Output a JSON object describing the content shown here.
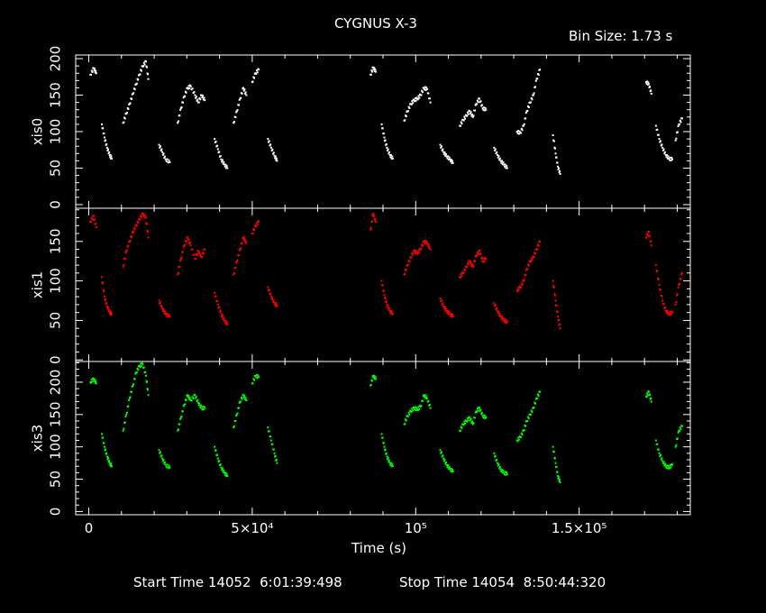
{
  "header": {
    "title": "CYGNUS X-3",
    "bin_size": "Bin Size: 1.73 s"
  },
  "footer": {
    "start_label": "Start Time 14052  6:01:39:498",
    "stop_label": "Stop Time 14054  8:50:44:320"
  },
  "colors": {
    "background": "#000000",
    "axes": "#ffffff",
    "xis0": "#ffffff",
    "xis1": "#ff0000",
    "xis3": "#00ff00"
  },
  "chart_data": {
    "type": "scatter",
    "title": "CYGNUS X-3",
    "subtitle": "Bin Size: 1.73 s",
    "xlabel": "Time (s)",
    "xlim": [
      -4000,
      184000
    ],
    "x_ticks": [
      {
        "value": 0,
        "label": "0"
      },
      {
        "value": 50000,
        "label": "5×10⁴"
      },
      {
        "value": 100000,
        "label": "10⁵"
      },
      {
        "value": 150000,
        "label": "1.5×10⁵"
      }
    ],
    "panels": [
      {
        "name": "xis0",
        "ylabel": "xis0",
        "color": "#ffffff",
        "ylim": [
          -5,
          205
        ],
        "yticks": [
          0,
          50,
          100,
          150,
          200
        ],
        "segments": [
          {
            "x": [
              500,
              1500,
              2300
            ],
            "y": [
              178,
              187,
              180
            ]
          },
          {
            "x": [
              4000,
              4800,
              5600,
              6400,
              7000
            ],
            "y": [
              110,
              92,
              78,
              68,
              63
            ]
          },
          {
            "x": [
              10500,
              11500,
              12500,
              13500,
              14500,
              15500,
              16500,
              17500,
              18200
            ],
            "y": [
              112,
              125,
              138,
              152,
              165,
              178,
              190,
              196,
              172
            ]
          },
          {
            "x": [
              21500,
              22500,
              23500,
              24800
            ],
            "y": [
              82,
              72,
              62,
              58
            ]
          },
          {
            "x": [
              27200,
              28200,
              29200,
              30200,
              31200,
              32500,
              33500,
              34500,
              35500
            ],
            "y": [
              112,
              132,
              148,
              160,
              162,
              150,
              140,
              150,
              143
            ]
          },
          {
            "x": [
              38500,
              39500,
              40500,
              41500,
              42400
            ],
            "y": [
              90,
              76,
              62,
              55,
              50
            ]
          },
          {
            "x": [
              44300,
              45300,
              46300,
              47300,
              48200
            ],
            "y": [
              112,
              128,
              145,
              160,
              150
            ]
          },
          {
            "x": [
              50000,
              51000,
              52000
            ],
            "y": [
              168,
              180,
              185
            ]
          },
          {
            "x": [
              54800,
              55800,
              56800,
              57600
            ],
            "y": [
              90,
              78,
              67,
              60
            ]
          },
          {
            "x": [
              86200,
              87000,
              87800
            ],
            "y": [
              178,
              188,
              182
            ]
          },
          {
            "x": [
              89600,
              90400,
              91200,
              92100,
              93000
            ],
            "y": [
              110,
              92,
              78,
              68,
              63
            ]
          },
          {
            "x": [
              96500,
              97500,
              98500,
              99500,
              100500,
              101500,
              102500,
              103500,
              104500
            ],
            "y": [
              115,
              128,
              138,
              143,
              145,
              150,
              160,
              158,
              140
            ]
          },
          {
            "x": [
              107500,
              108500,
              109500,
              110500,
              111400
            ],
            "y": [
              82,
              72,
              66,
              62,
              57
            ]
          },
          {
            "x": [
              113500,
              114500,
              115500,
              116500,
              117500,
              118500,
              119500,
              120500,
              121500
            ],
            "y": [
              108,
              116,
              122,
              128,
              120,
              138,
              145,
              132,
              130
            ]
          },
          {
            "x": [
              124000,
              125000,
              126000,
              127000,
              128000
            ],
            "y": [
              78,
              68,
              60,
              55,
              50
            ]
          },
          {
            "x": [
              131000,
              132000,
              133000,
              134000,
              135000,
              136000,
              137000,
              138000
            ],
            "y": [
              100,
              98,
              108,
              128,
              140,
              150,
              172,
              185
            ]
          },
          {
            "x": [
              142000,
              142800,
              143500,
              144200
            ],
            "y": [
              95,
              70,
              52,
              42
            ]
          },
          {
            "x": [
              170500,
              171300,
              172100
            ],
            "y": [
              168,
              165,
              152
            ]
          },
          {
            "x": [
              173500,
              174500,
              175500,
              176500,
              177500,
              178500
            ],
            "y": [
              108,
              90,
              78,
              68,
              63,
              62
            ]
          },
          {
            "x": [
              179500,
              180500,
              181500
            ],
            "y": [
              88,
              110,
              118
            ]
          }
        ]
      },
      {
        "name": "xis1",
        "ylabel": "xis1",
        "color": "#ff0000",
        "ylim": [
          -2,
          192
        ],
        "yticks": [
          0,
          50,
          100,
          150
        ],
        "segments": [
          {
            "x": [
              500,
              1500,
              2300
            ],
            "y": [
              175,
              182,
              168
            ]
          },
          {
            "x": [
              4000,
              4800,
              5600,
              6400,
              7000
            ],
            "y": [
              105,
              80,
              68,
              60,
              58
            ]
          },
          {
            "x": [
              10500,
              11500,
              12500,
              13500,
              14500,
              15500,
              16500,
              17500,
              18200
            ],
            "y": [
              118,
              138,
              150,
              162,
              170,
              178,
              185,
              180,
              155
            ]
          },
          {
            "x": [
              21500,
              22500,
              23500,
              24800
            ],
            "y": [
              75,
              65,
              58,
              55
            ]
          },
          {
            "x": [
              27200,
              28200,
              29200,
              30200,
              31200,
              32500,
              33500,
              34500,
              35500
            ],
            "y": [
              108,
              128,
              145,
              155,
              145,
              128,
              138,
              130,
              140
            ]
          },
          {
            "x": [
              38500,
              39500,
              40500,
              41500,
              42400
            ],
            "y": [
              85,
              70,
              58,
              50,
              45
            ]
          },
          {
            "x": [
              44300,
              45300,
              46300,
              47300,
              48200
            ],
            "y": [
              108,
              125,
              140,
              155,
              148
            ]
          },
          {
            "x": [
              50000,
              51000,
              52000
            ],
            "y": [
              160,
              170,
              175
            ]
          },
          {
            "x": [
              54800,
              55800,
              56800,
              57600
            ],
            "y": [
              92,
              80,
              72,
              68
            ]
          },
          {
            "x": [
              86200,
              87000,
              87800
            ],
            "y": [
              165,
              185,
              175
            ]
          },
          {
            "x": [
              89600,
              90400,
              91200,
              92100,
              93000
            ],
            "y": [
              100,
              82,
              70,
              62,
              58
            ]
          },
          {
            "x": [
              96500,
              97500,
              98500,
              99500,
              100500,
              101500,
              102500,
              103500,
              104500
            ],
            "y": [
              108,
              120,
              130,
              138,
              135,
              140,
              150,
              148,
              140
            ]
          },
          {
            "x": [
              107500,
              108500,
              109500,
              110500,
              111400
            ],
            "y": [
              78,
              68,
              62,
              58,
              55
            ]
          },
          {
            "x": [
              113500,
              114500,
              115500,
              116500,
              117500,
              118500,
              119500,
              120500,
              121500
            ],
            "y": [
              105,
              110,
              118,
              125,
              118,
              132,
              138,
              125,
              128
            ]
          },
          {
            "x": [
              124000,
              125000,
              126000,
              127000,
              128000
            ],
            "y": [
              72,
              62,
              55,
              50,
              48
            ]
          },
          {
            "x": [
              131000,
              132000,
              133000,
              134000,
              135000,
              136000,
              137000,
              138000
            ],
            "y": [
              88,
              92,
              100,
              115,
              125,
              130,
              140,
              150
            ]
          },
          {
            "x": [
              142000,
              142800,
              143500,
              144200
            ],
            "y": [
              100,
              75,
              55,
              40
            ]
          },
          {
            "x": [
              170500,
              171300,
              172100
            ],
            "y": [
              155,
              162,
              145
            ]
          },
          {
            "x": [
              173500,
              174500,
              175500,
              176500,
              177500,
              178500
            ],
            "y": [
              120,
              95,
              75,
              62,
              58,
              60
            ]
          },
          {
            "x": [
              179500,
              180500,
              181500
            ],
            "y": [
              70,
              95,
              110
            ]
          }
        ]
      },
      {
        "name": "xis3",
        "ylabel": "xis3",
        "color": "#00ff00",
        "ylim": [
          -5,
          232
        ],
        "yticks": [
          0,
          50,
          100,
          150,
          200
        ],
        "segments": [
          {
            "x": [
              500,
              1500,
              2300
            ],
            "y": [
              200,
              205,
              198
            ]
          },
          {
            "x": [
              4000,
              4800,
              5600,
              6400,
              7000
            ],
            "y": [
              120,
              100,
              85,
              75,
              70
            ]
          },
          {
            "x": [
              10500,
              11500,
              12500,
              13500,
              14500,
              15500,
              16500,
              17500,
              18200
            ],
            "y": [
              125,
              150,
              175,
              195,
              215,
              225,
              228,
              210,
              180
            ]
          },
          {
            "x": [
              21500,
              22500,
              23500,
              24800
            ],
            "y": [
              95,
              82,
              72,
              68
            ]
          },
          {
            "x": [
              27200,
              28200,
              29200,
              30200,
              31200,
              32500,
              33500,
              34500,
              35500
            ],
            "y": [
              125,
              145,
              165,
              180,
              172,
              180,
              168,
              160,
              160
            ]
          },
          {
            "x": [
              38500,
              39500,
              40500,
              41500,
              42400
            ],
            "y": [
              100,
              82,
              68,
              60,
              55
            ]
          },
          {
            "x": [
              44300,
              45300,
              46300,
              47300,
              48200
            ],
            "y": [
              130,
              150,
              170,
              180,
              172
            ]
          },
          {
            "x": [
              50000,
              51000,
              52000
            ],
            "y": [
              198,
              210,
              208
            ]
          },
          {
            "x": [
              54800,
              55800,
              56800,
              57600
            ],
            "y": [
              130,
              110,
              90,
              75
            ]
          },
          {
            "x": [
              86200,
              87000,
              87800
            ],
            "y": [
              195,
              210,
              205
            ]
          },
          {
            "x": [
              89600,
              90400,
              91200,
              92100,
              93000
            ],
            "y": [
              120,
              100,
              85,
              75,
              70
            ]
          },
          {
            "x": [
              96500,
              97500,
              98500,
              99500,
              100500,
              101500,
              102500,
              103500,
              104500
            ],
            "y": [
              135,
              148,
              155,
              160,
              158,
              162,
              180,
              175,
              160
            ]
          },
          {
            "x": [
              107500,
              108500,
              109500,
              110500,
              111400
            ],
            "y": [
              95,
              82,
              72,
              66,
              62
            ]
          },
          {
            "x": [
              113500,
              114500,
              115500,
              116500,
              117500,
              118500,
              119500,
              120500,
              121500
            ],
            "y": [
              125,
              135,
              140,
              145,
              135,
              155,
              160,
              148,
              145
            ]
          },
          {
            "x": [
              124000,
              125000,
              126000,
              127000,
              128000
            ],
            "y": [
              90,
              75,
              65,
              60,
              58
            ]
          },
          {
            "x": [
              131000,
              132000,
              133000,
              134000,
              135000,
              136000,
              137000,
              138000
            ],
            "y": [
              110,
              115,
              125,
              140,
              150,
              160,
              175,
              185
            ]
          },
          {
            "x": [
              142000,
              142800,
              143500,
              144200
            ],
            "y": [
              100,
              75,
              55,
              45
            ]
          },
          {
            "x": [
              170500,
              171300,
              172100
            ],
            "y": [
              178,
              185,
              170
            ]
          },
          {
            "x": [
              173500,
              174500,
              175500,
              176500,
              177500,
              178500
            ],
            "y": [
              110,
              90,
              78,
              70,
              68,
              72
            ]
          },
          {
            "x": [
              179500,
              180500,
              181500
            ],
            "y": [
              100,
              125,
              132
            ]
          }
        ]
      }
    ]
  }
}
